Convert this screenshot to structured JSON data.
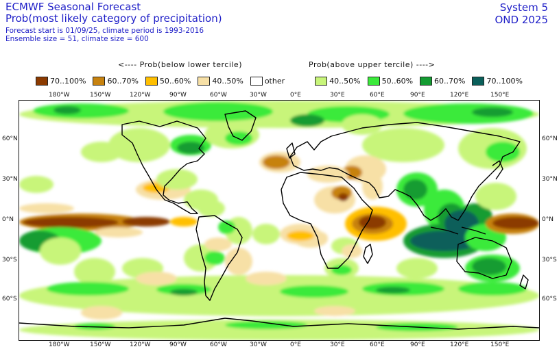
{
  "header": {
    "title_line1": "ECMWF Seasonal Forecast",
    "title_line2": "Prob(most likely category of precipitation)",
    "sub_line1": "Forecast start is 01/09/25, climate period is 1993-2016",
    "sub_line2": "Ensemble size = 51, climate size = 600",
    "system": "System 5",
    "season": "OND 2025"
  },
  "legend": {
    "below_heading": "<---- Prob(below lower tercile)",
    "above_heading": "Prob(above upper tercile) ---->",
    "items": [
      {
        "label": "70..100%",
        "color": "#8b3a00"
      },
      {
        "label": "60..70%",
        "color": "#c7820f"
      },
      {
        "label": "50..60%",
        "color": "#ffbf00"
      },
      {
        "label": "40..50%",
        "color": "#f7e0a6"
      },
      {
        "label": "other",
        "color": "#ffffff"
      },
      {
        "label": "40..50%",
        "color": "#c8f57a"
      },
      {
        "label": "50..60%",
        "color": "#3bea3b"
      },
      {
        "label": "60..70%",
        "color": "#149c32"
      },
      {
        "label": "70..100%",
        "color": "#0a5f5a"
      }
    ]
  },
  "map": {
    "lon_labels": [
      "180°W",
      "150°W",
      "120°W",
      "90°W",
      "60°W",
      "30°W",
      "0°E",
      "30°E",
      "60°E",
      "90°E",
      "120°E",
      "150°E"
    ],
    "lat_labels": [
      "60°N",
      "30°N",
      "0°N",
      "30°S",
      "60°S"
    ]
  }
}
